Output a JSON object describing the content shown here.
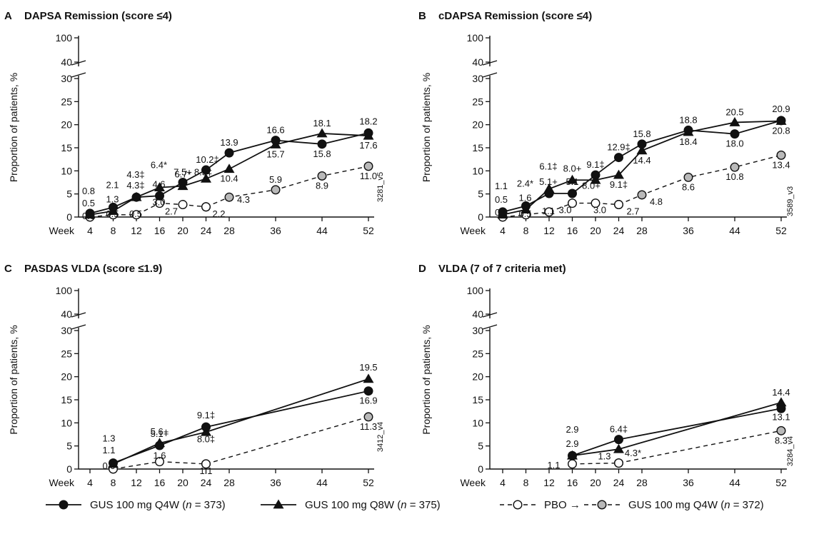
{
  "colors": {
    "ink": "#111111",
    "pbo_open": "#ffffff",
    "crossover": "#b9b9b9"
  },
  "legend": {
    "q4w": {
      "prefix": "GUS 100 mg Q4W (",
      "n": "n",
      "suffix": " = 373)"
    },
    "q8w": {
      "prefix": "GUS 100 mg Q8W (",
      "n": "n",
      "suffix": " = 375)"
    },
    "pbo": {
      "text": "PBO →"
    },
    "pbo_gus": {
      "prefix": "GUS 100 mg Q4W (",
      "n": "n",
      "suffix": " = 372)"
    }
  },
  "chart_data": [
    {
      "type": "line",
      "letter": "A",
      "title": "DAPSA Remission (score ≤4)",
      "ylabel": "Proportion of patients, %",
      "xlabel": "Week",
      "x_ticks": [
        4,
        8,
        12,
        16,
        20,
        24,
        28,
        36,
        44,
        52
      ],
      "y_ticks": [
        0,
        5,
        10,
        15,
        20,
        25,
        30
      ],
      "y_break_ticks": [
        40,
        100
      ],
      "ylim": [
        0,
        30
      ],
      "code": "3281_v5",
      "series": [
        {
          "key": "q4w",
          "marker": "circle",
          "line": "solid",
          "x": [
            4,
            8,
            12,
            16,
            20,
            24,
            28,
            36,
            44,
            52
          ],
          "values": [
            0.8,
            2.1,
            4.3,
            4.6,
            7.5,
            10.2,
            13.9,
            16.6,
            15.8,
            18.2
          ]
        },
        {
          "key": "q8w",
          "marker": "triangle",
          "line": "solid",
          "x": [
            4,
            8,
            12,
            16,
            20,
            24,
            28,
            36,
            44,
            52
          ],
          "values": [
            0.5,
            1.3,
            4.3,
            6.4,
            6.7,
            8.3,
            10.4,
            15.7,
            18.1,
            17.6
          ]
        },
        {
          "key": "pbo",
          "marker": "open-circle",
          "line": "dashed",
          "x": [
            4,
            8,
            12,
            16,
            20,
            24
          ],
          "values": [
            0.0,
            0.5,
            0.5,
            3.0,
            2.7,
            2.2
          ]
        },
        {
          "key": "pbo_gus",
          "marker": "grey-circle",
          "line": "dashed",
          "x": [
            24,
            28,
            36,
            44,
            52
          ],
          "values": [
            2.2,
            4.3,
            5.9,
            8.9,
            11.0
          ]
        }
      ],
      "labels": [
        {
          "t": "0.8",
          "x": 4,
          "y": 0
        },
        {
          "t": "0.5",
          "x": 4,
          "y": 0
        },
        {
          "t": "0.0",
          "x": 4,
          "y": 0
        },
        {
          "t": "2.1",
          "x": 8,
          "y": 0
        },
        {
          "t": "1.3",
          "x": 8,
          "y": 0
        },
        {
          "t": "0.5",
          "x": 8,
          "y": 0
        },
        {
          "t": "4.3‡",
          "x": 12,
          "y": 0
        },
        {
          "t": "4.3‡",
          "x": 12,
          "y": 0
        },
        {
          "t": "0.5",
          "x": 12,
          "y": 0
        },
        {
          "t": "6.4*",
          "x": 16,
          "y": 0
        },
        {
          "t": "4.6",
          "x": 16,
          "y": 0
        },
        {
          "t": "3.0",
          "x": 16,
          "y": 0
        },
        {
          "t": "7.5+",
          "x": 20,
          "y": 0
        },
        {
          "t": "6.7*",
          "x": 20,
          "y": 0
        },
        {
          "t": "2.7",
          "x": 16,
          "y": 0
        },
        {
          "t": "10.2‡",
          "x": 24,
          "y": 0
        },
        {
          "t": "8.3‡",
          "x": 24,
          "y": 0
        },
        {
          "t": "2.2",
          "x": 24,
          "y": 0
        },
        {
          "t": "13.9",
          "x": 28,
          "y": 0
        },
        {
          "t": "10.4",
          "x": 28,
          "y": 0
        },
        {
          "t": "4.3",
          "x": 28,
          "y": 0
        },
        {
          "t": "16.6",
          "x": 36,
          "y": 0
        },
        {
          "t": "15.7",
          "x": 36,
          "y": 0
        },
        {
          "t": "5.9",
          "x": 36,
          "y": 0
        },
        {
          "t": "18.1",
          "x": 44,
          "y": 0
        },
        {
          "t": "15.8",
          "x": 44,
          "y": 0
        },
        {
          "t": "8.9",
          "x": 44,
          "y": 0
        },
        {
          "t": "18.2",
          "x": 52,
          "y": 0
        },
        {
          "t": "17.6",
          "x": 52,
          "y": 0
        },
        {
          "t": "11.0",
          "x": 52,
          "y": 0
        }
      ]
    },
    {
      "type": "line",
      "letter": "B",
      "title": "cDAPSA Remission (score ≤4)",
      "ylabel": "Proportion of patients, %",
      "xlabel": "Week",
      "x_ticks": [
        4,
        8,
        12,
        16,
        20,
        24,
        28,
        36,
        44,
        52
      ],
      "y_ticks": [
        0,
        5,
        10,
        15,
        20,
        25,
        30
      ],
      "y_break_ticks": [
        40,
        100
      ],
      "ylim": [
        0,
        30
      ],
      "code": "3589_v3",
      "series": [
        {
          "key": "q4w",
          "marker": "circle",
          "line": "solid",
          "x": [
            4,
            8,
            12,
            16,
            20,
            24,
            28,
            36,
            44,
            52
          ],
          "values": [
            1.1,
            2.4,
            5.1,
            5.1,
            9.1,
            12.9,
            15.8,
            18.8,
            18.0,
            20.9
          ]
        },
        {
          "key": "q8w",
          "marker": "triangle",
          "line": "solid",
          "x": [
            4,
            8,
            12,
            16,
            20,
            24,
            28,
            36,
            44,
            52
          ],
          "values": [
            0.5,
            1.6,
            6.1,
            8.0,
            8.0,
            9.1,
            14.4,
            18.4,
            20.5,
            20.8
          ]
        },
        {
          "key": "pbo",
          "marker": "open-circle",
          "line": "dashed",
          "x": [
            4,
            8,
            12,
            16,
            20,
            24
          ],
          "values": [
            0.0,
            0.5,
            1.1,
            3.0,
            3.0,
            2.7
          ]
        },
        {
          "key": "pbo_gus",
          "marker": "grey-circle",
          "line": "dashed",
          "x": [
            24,
            28,
            36,
            44,
            52
          ],
          "values": [
            2.7,
            4.8,
            8.6,
            10.8,
            13.4
          ]
        }
      ],
      "labels": [
        {
          "t": "1.1"
        },
        {
          "t": "0.5"
        },
        {
          "t": "0.0"
        },
        {
          "t": "2.4*"
        },
        {
          "t": "1.6"
        },
        {
          "t": "0.5"
        },
        {
          "t": "6.1‡"
        },
        {
          "t": "5.1+"
        },
        {
          "t": "1.1"
        },
        {
          "t": "8.0+"
        },
        {
          "t": "5.1"
        },
        {
          "t": "3.0"
        },
        {
          "t": "9.1‡"
        },
        {
          "t": "8.0+"
        },
        {
          "t": "3.0"
        },
        {
          "t": "12.9‡"
        },
        {
          "t": "9.1‡"
        },
        {
          "t": "2.7"
        },
        {
          "t": "15.8"
        },
        {
          "t": "14.4"
        },
        {
          "t": "4.8"
        },
        {
          "t": "18.8"
        },
        {
          "t": "18.4"
        },
        {
          "t": "8.6"
        },
        {
          "t": "20.5"
        },
        {
          "t": "18.0"
        },
        {
          "t": "10.8"
        },
        {
          "t": "20.9"
        },
        {
          "t": "20.8"
        },
        {
          "t": "13.4"
        }
      ]
    },
    {
      "type": "line",
      "letter": "C",
      "title": "PASDAS VLDA (score ≤1.9)",
      "ylabel": "Proportion of patients, %",
      "xlabel": "Week",
      "x_ticks": [
        4,
        8,
        12,
        16,
        20,
        24,
        28,
        36,
        44,
        52
      ],
      "y_ticks": [
        0,
        5,
        10,
        15,
        20,
        25,
        30
      ],
      "y_break_ticks": [
        40,
        100
      ],
      "ylim": [
        0,
        30
      ],
      "code": "3412_v4",
      "series": [
        {
          "key": "q4w",
          "marker": "circle",
          "line": "solid",
          "x": [
            8,
            16,
            24,
            52
          ],
          "values": [
            1.3,
            5.1,
            9.1,
            16.9
          ]
        },
        {
          "key": "q8w",
          "marker": "triangle",
          "line": "solid",
          "x": [
            8,
            16,
            24,
            52
          ],
          "values": [
            1.1,
            5.6,
            8.0,
            19.5
          ]
        },
        {
          "key": "pbo",
          "marker": "open-circle",
          "line": "dashed",
          "x": [
            8,
            16,
            24
          ],
          "values": [
            0.0,
            1.6,
            1.1
          ]
        },
        {
          "key": "pbo_gus",
          "marker": "grey-circle",
          "line": "dashed",
          "x": [
            24,
            52
          ],
          "values": [
            1.1,
            11.3
          ]
        }
      ],
      "labels": [
        {
          "t": "1.3"
        },
        {
          "t": "1.1"
        },
        {
          "t": "0.0"
        },
        {
          "t": "5.6+"
        },
        {
          "t": "5.1+"
        },
        {
          "t": "1.6"
        },
        {
          "t": "9.1‡"
        },
        {
          "t": "8.0‡"
        },
        {
          "t": "1.1"
        },
        {
          "t": "19.5"
        },
        {
          "t": "16.9"
        },
        {
          "t": "11.3"
        }
      ]
    },
    {
      "type": "line",
      "letter": "D",
      "title": "VLDA (7 of 7 criteria met)",
      "ylabel": "Proportion of patients, %",
      "xlabel": "Week",
      "x_ticks": [
        4,
        8,
        12,
        16,
        20,
        24,
        28,
        36,
        44,
        52
      ],
      "y_ticks": [
        0,
        5,
        10,
        15,
        20,
        25,
        30
      ],
      "y_break_ticks": [
        40,
        100
      ],
      "ylim": [
        0,
        30
      ],
      "code": "3284_v4",
      "series": [
        {
          "key": "q4w",
          "marker": "circle",
          "line": "solid",
          "x": [
            16,
            24,
            52
          ],
          "values": [
            2.9,
            6.4,
            13.1
          ]
        },
        {
          "key": "q8w",
          "marker": "triangle",
          "line": "solid",
          "x": [
            16,
            24,
            52
          ],
          "values": [
            2.9,
            4.3,
            14.4
          ]
        },
        {
          "key": "pbo",
          "marker": "open-circle",
          "line": "dashed",
          "x": [
            16,
            24
          ],
          "values": [
            1.1,
            1.3
          ]
        },
        {
          "key": "pbo_gus",
          "marker": "grey-circle",
          "line": "dashed",
          "x": [
            24,
            52
          ],
          "values": [
            1.3,
            8.3
          ]
        }
      ],
      "labels": [
        {
          "t": "2.9"
        },
        {
          "t": "2.9"
        },
        {
          "t": "1.1"
        },
        {
          "t": "6.4‡"
        },
        {
          "t": "4.3*"
        },
        {
          "t": "1.3"
        },
        {
          "t": "14.4"
        },
        {
          "t": "13.1"
        },
        {
          "t": "8.3"
        }
      ]
    }
  ]
}
